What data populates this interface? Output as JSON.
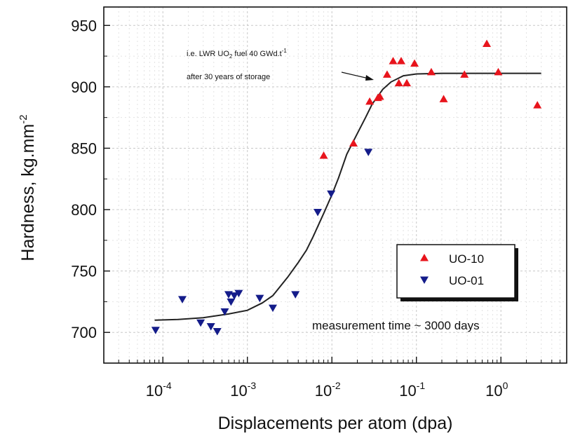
{
  "chart_data": {
    "type": "scatter",
    "x_scale": "log",
    "xlim": [
      2e-05,
      6
    ],
    "ylim": [
      675,
      965
    ],
    "grid": true,
    "xlabel": "Displacements per atom (dpa)",
    "ylabel": "Hardness, kg.mm",
    "ylabel_sup": "-2",
    "y_ticks": [
      700,
      750,
      800,
      850,
      900,
      950
    ],
    "x_ticks": [
      {
        "value": 0.0001,
        "base": "10",
        "exp": "-4"
      },
      {
        "value": 0.001,
        "base": "10",
        "exp": "-3"
      },
      {
        "value": 0.01,
        "base": "10",
        "exp": "-2"
      },
      {
        "value": 0.1,
        "base": "10",
        "exp": "-1"
      },
      {
        "value": 1,
        "base": "10",
        "exp": "0"
      }
    ],
    "series": [
      {
        "name": "UO-10",
        "marker": "triangle-up",
        "color": "#e8141c",
        "points": [
          [
            0.008,
            844
          ],
          [
            0.018,
            854
          ],
          [
            0.028,
            888
          ],
          [
            0.035,
            891
          ],
          [
            0.037,
            892
          ],
          [
            0.045,
            910
          ],
          [
            0.053,
            921
          ],
          [
            0.062,
            903
          ],
          [
            0.066,
            921
          ],
          [
            0.077,
            903
          ],
          [
            0.095,
            919
          ],
          [
            0.15,
            912
          ],
          [
            0.21,
            890
          ],
          [
            0.37,
            910
          ],
          [
            0.68,
            935
          ],
          [
            0.93,
            912
          ],
          [
            2.7,
            885
          ]
        ]
      },
      {
        "name": "UO-01",
        "marker": "triangle-down",
        "color": "#141c8a",
        "points": [
          [
            8.2e-05,
            702
          ],
          [
            0.00017,
            727
          ],
          [
            0.00028,
            708
          ],
          [
            0.00037,
            705
          ],
          [
            0.00044,
            701
          ],
          [
            0.00054,
            717
          ],
          [
            0.0006,
            731
          ],
          [
            0.00064,
            725
          ],
          [
            0.0007,
            730
          ],
          [
            0.00079,
            732
          ],
          [
            0.0014,
            728
          ],
          [
            0.002,
            720
          ],
          [
            0.0037,
            731
          ],
          [
            0.0068,
            798
          ],
          [
            0.0098,
            813
          ],
          [
            0.027,
            847
          ]
        ]
      }
    ],
    "fit_curve": {
      "color": "#222222",
      "points": [
        [
          8e-05,
          710
        ],
        [
          0.00015,
          710.5
        ],
        [
          0.0003,
          712
        ],
        [
          0.0006,
          715
        ],
        [
          0.001,
          718
        ],
        [
          0.0015,
          724
        ],
        [
          0.002,
          730
        ],
        [
          0.003,
          745
        ],
        [
          0.004,
          757
        ],
        [
          0.005,
          767
        ],
        [
          0.006,
          778
        ],
        [
          0.008,
          797
        ],
        [
          0.01,
          812
        ],
        [
          0.012,
          826
        ],
        [
          0.015,
          845
        ],
        [
          0.02,
          862
        ],
        [
          0.025,
          875
        ],
        [
          0.03,
          886
        ],
        [
          0.04,
          898
        ],
        [
          0.05,
          904
        ],
        [
          0.07,
          909
        ],
        [
          0.1,
          910.5
        ],
        [
          0.2,
          911
        ],
        [
          1,
          911
        ],
        [
          3,
          911
        ]
      ]
    },
    "annotations": {
      "top_line1": "i.e. LWR UO",
      "top_sub": "2",
      "top_line1_rest": " fuel 40 GWd.t",
      "top_sup": "-1",
      "top_line2": "after 30 years of storage",
      "bottom": "measurement time ~ 3000 days"
    },
    "legend_position": "right-center"
  }
}
